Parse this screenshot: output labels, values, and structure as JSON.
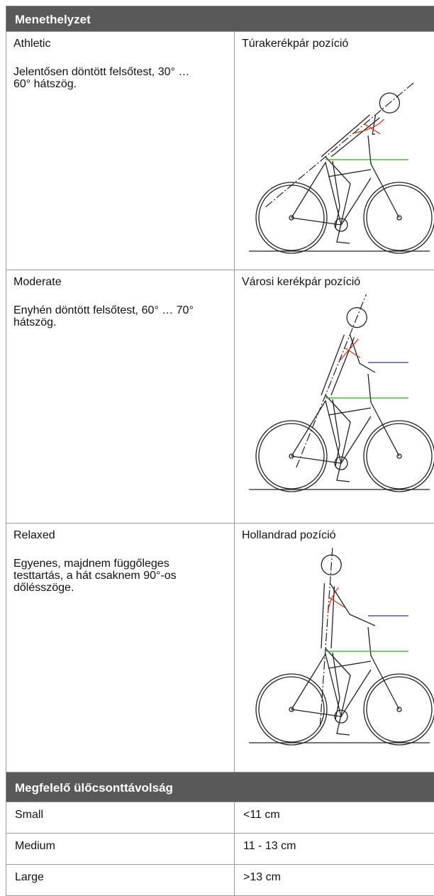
{
  "header": {
    "title": "Menethelyzet"
  },
  "positions": [
    {
      "name": "Athletic",
      "description": "Jelentősen döntött felsőtest, 30° … 60° hátszög.",
      "image_title": "Túrakerékpár pozíció"
    },
    {
      "name": "Moderate",
      "description": "Enyhén döntött felsőtest, 60° … 70° hátszög.",
      "image_title": "Városi kerékpár pozíció"
    },
    {
      "name": "Relaxed",
      "description": "Egyenes, majdnem függőleges testtartás, a hát csaknem 90°-os dőlésszöge.",
      "image_title": "Hollandrad pozíció"
    }
  ],
  "sizes": {
    "title": "Megfelelő ülőcsonttávolság",
    "rows": [
      [
        "Small",
        "<11 cm"
      ],
      [
        "Medium",
        "11 - 13 cm"
      ],
      [
        "Large",
        ">13 cm"
      ]
    ]
  }
}
